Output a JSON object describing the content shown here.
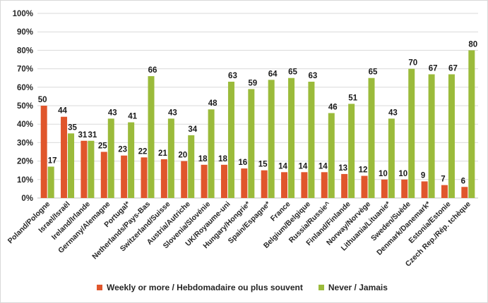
{
  "chart_data": {
    "type": "bar",
    "title": "",
    "xlabel": "",
    "ylabel": "",
    "ylim": [
      0,
      100
    ],
    "yticks": [
      "0%",
      "10%",
      "20%",
      "30%",
      "40%",
      "50%",
      "60%",
      "70%",
      "80%",
      "90%",
      "100%"
    ],
    "grid": true,
    "legend_position": "bottom",
    "categories": [
      "Poland/Pologne",
      "Israel/Israël",
      "Ireland/Irlande",
      "Germany/Alemagne",
      "Portugal*",
      "Netherlands/Pays-Bas",
      "Switzerland/Suisse",
      "Austria/Autriche",
      "Slovenia/Slovénie",
      "UK/Royaume-uni",
      "Hungary/Hongrie*",
      "Spain/Espagne*",
      "France",
      "Belgium/Belgique",
      "Russia/Russie^",
      "Finland/Finlande",
      "Norway/Norvège",
      "Lithuania/Lituanie*",
      "Sweden/Suède",
      "Denmark/Danemark*",
      "Estonia/Estonie",
      "Czech Rep./Rép. tchèque"
    ],
    "series": [
      {
        "name": "Weekly or more / Hebdomadaire ou plus souvent",
        "color": "#e0562c",
        "values": [
          50,
          44,
          31,
          25,
          23,
          22,
          21,
          20,
          18,
          18,
          16,
          15,
          14,
          14,
          14,
          13,
          12,
          10,
          10,
          9,
          7,
          6
        ]
      },
      {
        "name": "Never / Jamais",
        "color": "#9bbb3b",
        "values": [
          17,
          35,
          31,
          43,
          41,
          66,
          43,
          34,
          48,
          63,
          59,
          64,
          65,
          63,
          46,
          51,
          65,
          43,
          70,
          67,
          67,
          80
        ]
      }
    ]
  }
}
